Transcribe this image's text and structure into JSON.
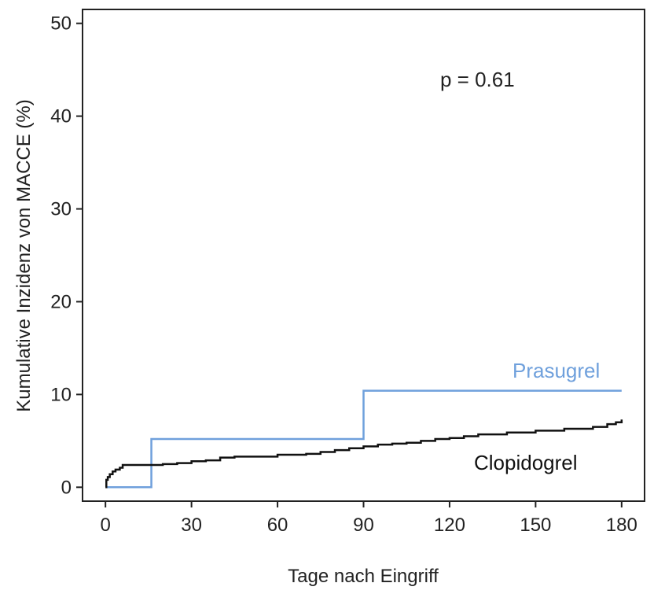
{
  "chart_data": {
    "type": "line",
    "xlabel": "Tage nach Eingriff",
    "ylabel": "Kumulative Inzidenz von MACCE (%)",
    "xlim": [
      -8,
      188
    ],
    "ylim": [
      -1.5,
      51.5
    ],
    "xticks": [
      "0",
      "30",
      "60",
      "90",
      "120",
      "150",
      "180"
    ],
    "yticks": [
      "0",
      "10",
      "20",
      "30",
      "40",
      "50"
    ],
    "annotation": "p = 0.61",
    "grid": false,
    "series": [
      {
        "name": "Prasugrel",
        "color": "#6fa0dc",
        "step": true,
        "x": [
          0,
          16,
          16,
          90,
          90,
          180
        ],
        "y": [
          0,
          0,
          5.2,
          5.2,
          10.4,
          10.4
        ]
      },
      {
        "name": "Clopidogrel",
        "color": "#111111",
        "step": true,
        "x": [
          0,
          0.3,
          0.8,
          1.5,
          2.5,
          3.5,
          5,
          6,
          10,
          15,
          20,
          25,
          30,
          35,
          40,
          45,
          50,
          60,
          70,
          75,
          80,
          85,
          90,
          95,
          100,
          105,
          110,
          115,
          120,
          125,
          130,
          140,
          150,
          160,
          170,
          175,
          178,
          180
        ],
        "y": [
          0,
          0.8,
          1.1,
          1.4,
          1.7,
          1.9,
          2.1,
          2.4,
          2.4,
          2.4,
          2.5,
          2.6,
          2.8,
          2.9,
          3.2,
          3.3,
          3.3,
          3.5,
          3.6,
          3.8,
          4.0,
          4.2,
          4.4,
          4.6,
          4.7,
          4.8,
          5.0,
          5.2,
          5.3,
          5.5,
          5.7,
          5.9,
          6.1,
          6.3,
          6.5,
          6.8,
          7.0,
          7.3
        ]
      }
    ]
  }
}
